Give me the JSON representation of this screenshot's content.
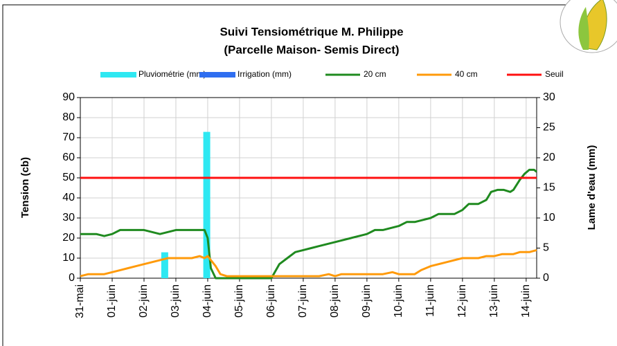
{
  "chart_data": {
    "type": "line",
    "title": [
      "Suivi Tensiométrique M. Philippe",
      "(Parcelle Maison- Semis Direct)"
    ],
    "ylabel": "Tension (cb)",
    "y2label": "Lame d'eau (mm)",
    "xlim": [
      0,
      14.33
    ],
    "xticks": [
      {
        "value": 0,
        "label": "31-mai"
      },
      {
        "value": 1,
        "label": "01-juin"
      },
      {
        "value": 2,
        "label": "02-juin"
      },
      {
        "value": 3,
        "label": "03-juin"
      },
      {
        "value": 4,
        "label": "04-juin"
      },
      {
        "value": 5,
        "label": "05-juin"
      },
      {
        "value": 6,
        "label": "06-juin"
      },
      {
        "value": 7,
        "label": "07-juin"
      },
      {
        "value": 8,
        "label": "08-juin"
      },
      {
        "value": 9,
        "label": "09-juin"
      },
      {
        "value": 10,
        "label": "10-juin"
      },
      {
        "value": 11,
        "label": "11-juin"
      },
      {
        "value": 12,
        "label": "12-juin"
      },
      {
        "value": 13,
        "label": "13-juin"
      },
      {
        "value": 14,
        "label": "14-juin"
      }
    ],
    "ylim": [
      0,
      90
    ],
    "yticks": [
      0,
      10,
      20,
      30,
      40,
      50,
      60,
      70,
      80,
      90
    ],
    "y2lim": [
      0,
      30
    ],
    "y2ticks": [
      0,
      5,
      10,
      15,
      20,
      25,
      30
    ],
    "grid": true,
    "series": [
      {
        "name": "Pluviométrie (mm)",
        "type": "bar",
        "axis": "y2",
        "color": "#2ee8f2",
        "x": [
          2.65,
          3.97
        ],
        "values": [
          4.3,
          24.3
        ]
      },
      {
        "name": "Irrigation (mm)",
        "type": "bar",
        "axis": "y2",
        "color": "#2f6ef0",
        "x": [],
        "values": []
      },
      {
        "name": "20 cm",
        "type": "line",
        "color": "#1f8a1f",
        "x": [
          0,
          0.5,
          0.75,
          1,
          1.25,
          2,
          2.5,
          2.75,
          3,
          3.5,
          3.9,
          4.0,
          4.1,
          4.25,
          6.0,
          6.25,
          6.5,
          6.75,
          7,
          7.25,
          7.5,
          8,
          8.5,
          9,
          9.25,
          9.5,
          10,
          10.25,
          10.5,
          10.75,
          11,
          11.25,
          11.75,
          12,
          12.2,
          12.5,
          12.75,
          12.9,
          13.1,
          13.3,
          13.5,
          13.6,
          13.8,
          13.95,
          14.1,
          14.25,
          14.33
        ],
        "values": [
          22,
          22,
          21,
          22,
          24,
          24,
          22,
          23,
          24,
          24,
          24,
          20,
          5,
          0,
          0,
          7,
          10,
          13,
          14,
          15,
          16,
          18,
          20,
          22,
          24,
          24,
          26,
          28,
          28,
          29,
          30,
          32,
          32,
          34,
          37,
          37,
          39,
          43,
          44,
          44,
          43,
          44,
          49,
          52,
          54,
          54,
          53
        ]
      },
      {
        "name": "40 cm",
        "type": "line",
        "color": "#ff9a0a",
        "x": [
          0,
          0.25,
          0.75,
          1,
          1.25,
          1.5,
          1.75,
          2,
          2.25,
          2.5,
          2.75,
          3,
          3.5,
          3.75,
          3.9,
          4.0,
          4.25,
          4.4,
          4.6,
          6.0,
          7.5,
          7.8,
          8,
          8.2,
          9,
          9.5,
          9.8,
          10,
          10.5,
          10.7,
          11,
          11.5,
          12,
          12.5,
          12.75,
          13,
          13.25,
          13.6,
          13.8,
          14.1,
          14.33
        ],
        "values": [
          1,
          2,
          2,
          3,
          4,
          5,
          6,
          7,
          8,
          9,
          10,
          10,
          10,
          11,
          10,
          11,
          6,
          2,
          1,
          1,
          1,
          2,
          1,
          2,
          2,
          2,
          3,
          2,
          2,
          4,
          6,
          8,
          10,
          10,
          11,
          11,
          12,
          12,
          13,
          13,
          14
        ]
      },
      {
        "name": "Seuil",
        "type": "line",
        "color": "#ff1010",
        "x": [
          0,
          14.33
        ],
        "values": [
          50,
          50
        ]
      }
    ]
  }
}
